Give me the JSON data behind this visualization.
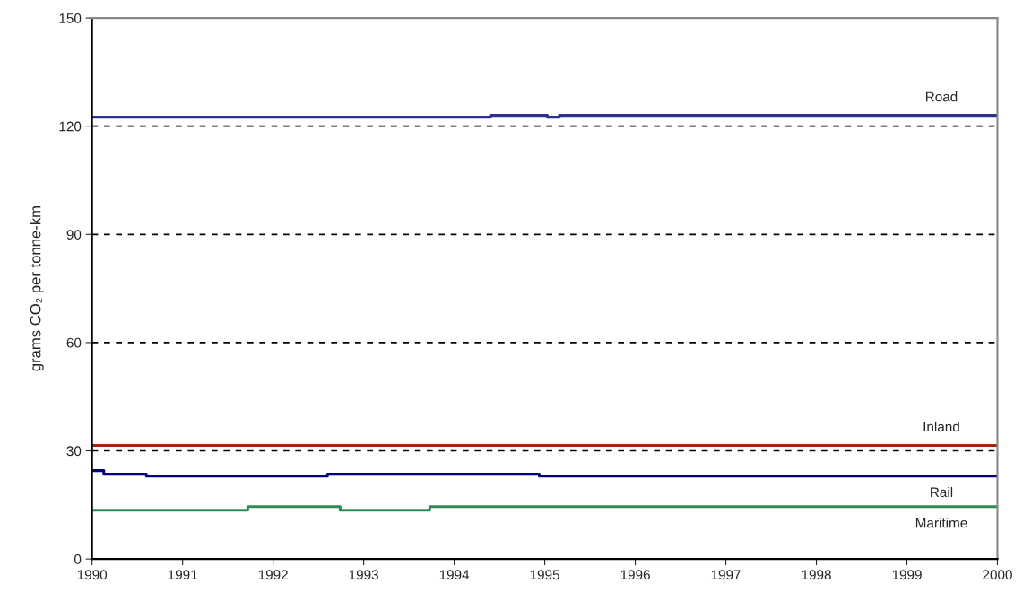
{
  "chart_data": {
    "type": "step",
    "ylabel": "grams CO₂ per tonne-km",
    "xlim": [
      1990,
      2000
    ],
    "xticks": [
      1990,
      1991,
      1992,
      1993,
      1994,
      1995,
      1996,
      1997,
      1998,
      1999,
      2000
    ],
    "ylim": [
      0,
      150
    ],
    "yticks": [
      0,
      30,
      60,
      90,
      120,
      150
    ],
    "grid": "y",
    "line_style": "solid",
    "marker": "none",
    "legend": false,
    "series": [
      {
        "name": "Road",
        "color": "#2e3192",
        "x": [
          1990,
          1994.4,
          1995.03,
          1995.16,
          2000
        ],
        "values": [
          122.5,
          123,
          122.5,
          123,
          123
        ]
      },
      {
        "name": "Inland",
        "color": "#a0280a",
        "x": [
          1990,
          2000
        ],
        "values": [
          31.5,
          31.5
        ]
      },
      {
        "name": "Rail",
        "color": "#000080",
        "x": [
          1990,
          1990.13,
          1990.6,
          1992.6,
          1994.94,
          2000
        ],
        "values": [
          24.5,
          23.5,
          23,
          23.5,
          23,
          23
        ]
      },
      {
        "name": "Maritime",
        "color": "#2e8b57",
        "x": [
          1990,
          1991.72,
          1992.74,
          1993.73,
          2000
        ],
        "values": [
          13.5,
          14.5,
          13.5,
          14.5,
          14.5
        ]
      }
    ]
  }
}
